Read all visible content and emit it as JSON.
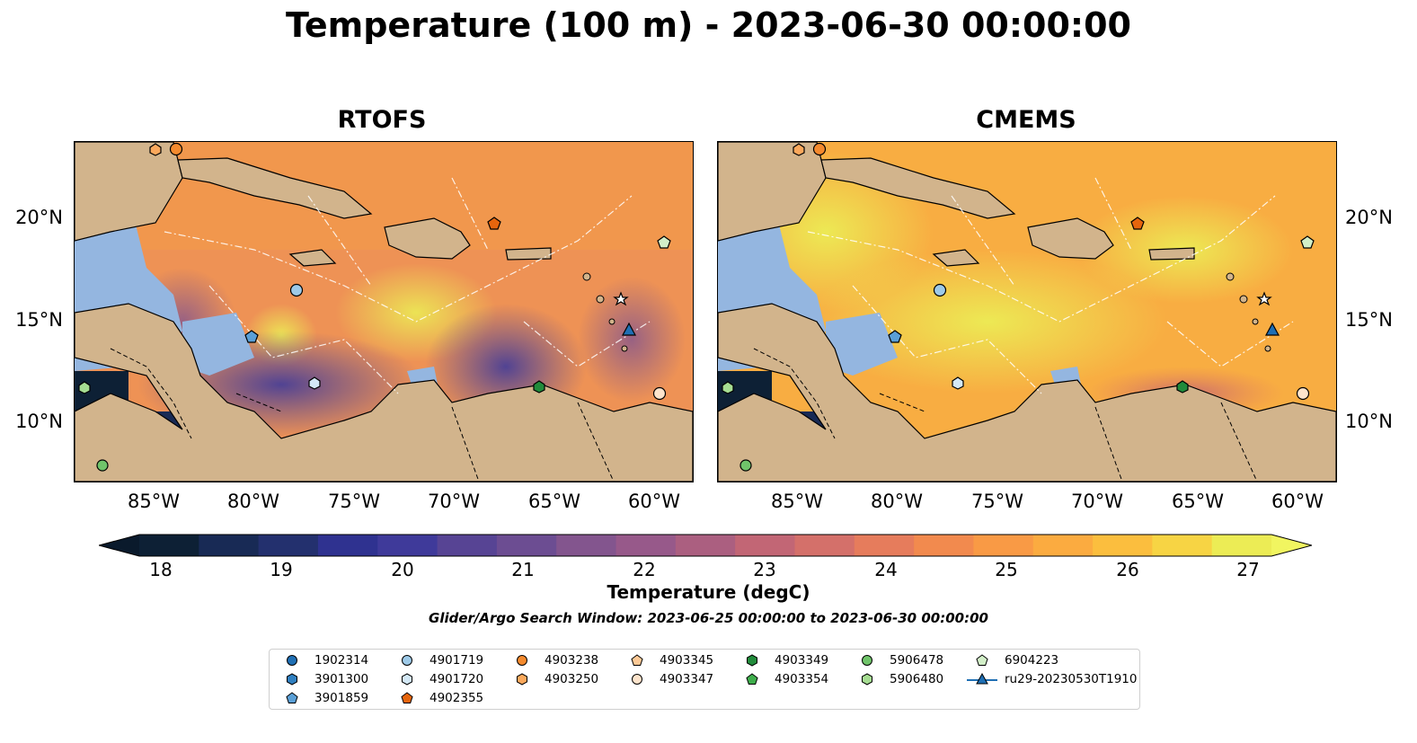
{
  "title": "Temperature (100 m) - 2023-06-30 00:00:00",
  "panels": [
    {
      "title": "RTOFS"
    },
    {
      "title": "CMEMS"
    }
  ],
  "axes": {
    "lon_ticks": [
      "85°W",
      "80°W",
      "75°W",
      "70°W",
      "65°W",
      "60°W"
    ],
    "lat_ticks": [
      "20°N",
      "15°N",
      "10°N"
    ]
  },
  "colorbar": {
    "label": "Temperature (degC)",
    "ticks": [
      "18",
      "19",
      "20",
      "21",
      "22",
      "23",
      "24",
      "25",
      "26",
      "27"
    ],
    "colors": [
      "#0d2035",
      "#182a55",
      "#23306e",
      "#2f3290",
      "#3f3a9a",
      "#574494",
      "#6c4d92",
      "#83558e",
      "#97598a",
      "#ab5f80",
      "#c26675",
      "#d4706a",
      "#e67c5c",
      "#f28a4e",
      "#f99a45",
      "#fbab40",
      "#fbbe3e",
      "#f7d444",
      "#ecec55"
    ]
  },
  "search_window": "Glider/Argo Search Window: 2023-06-25 00:00:00 to 2023-06-30 00:00:00",
  "colors": {
    "land": "#d2b48c",
    "shelf": "#94b6e0",
    "rtofs_sea": "#e98a5a",
    "cmems_sea": "#f6bf48"
  },
  "legend": [
    {
      "id": "1902314",
      "marker": "circle",
      "color": "#1f6fb4"
    },
    {
      "id": "3901300",
      "marker": "hexagon",
      "color": "#2f7fc0"
    },
    {
      "id": "3901859",
      "marker": "pentagon",
      "color": "#5a9fd6"
    },
    {
      "id": "4901719",
      "marker": "circle",
      "color": "#9ecae8"
    },
    {
      "id": "4901720",
      "marker": "hexagon",
      "color": "#d4e9f7"
    },
    {
      "id": "4902355",
      "marker": "pentagon",
      "color": "#e6650d"
    },
    {
      "id": "4903238",
      "marker": "circle",
      "color": "#f48a2e"
    },
    {
      "id": "4903250",
      "marker": "hexagon",
      "color": "#fba85c"
    },
    {
      "id": "4903345",
      "marker": "pentagon",
      "color": "#fdc996"
    },
    {
      "id": "4903347",
      "marker": "circle",
      "color": "#fde4cc"
    },
    {
      "id": "4903349",
      "marker": "hexagon",
      "color": "#218b3b"
    },
    {
      "id": "4903354",
      "marker": "pentagon",
      "color": "#3fae4c"
    },
    {
      "id": "5906478",
      "marker": "circle",
      "color": "#70c46a"
    },
    {
      "id": "5906480",
      "marker": "hexagon",
      "color": "#a6dd92"
    },
    {
      "id": "6904223",
      "marker": "pentagon",
      "color": "#d2efc8"
    },
    {
      "id": "ru29-20230530T1910",
      "marker": "triangle",
      "color": "#1f6fb4"
    }
  ]
}
